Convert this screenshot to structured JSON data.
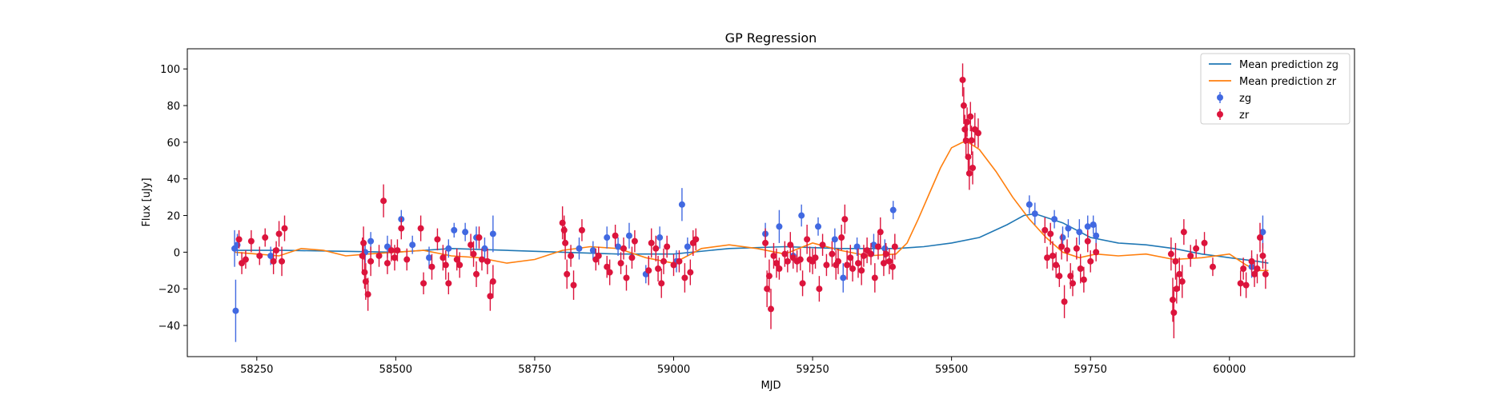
{
  "chart_data": {
    "type": "scatter",
    "title": "GP Regression",
    "xlabel": "MJD",
    "ylabel": "Flux [uJy]",
    "xlim": [
      58125,
      60225
    ],
    "ylim": [
      -57,
      111
    ],
    "xticks": [
      58250,
      58500,
      58750,
      59000,
      59250,
      59500,
      59750,
      60000
    ],
    "yticks": [
      -40,
      -20,
      0,
      20,
      40,
      60,
      80,
      100
    ],
    "grid": false,
    "legend_position": "top-right",
    "colors": {
      "mean_zg": "#1f77b4",
      "mean_zr": "#ff7f0e",
      "obs_zg": "#4169e1",
      "obs_zr": "#dc143c"
    },
    "legend": [
      {
        "label": "Mean prediction zg",
        "kind": "line",
        "color": "#1f77b4"
      },
      {
        "label": "Mean prediction zr",
        "kind": "line",
        "color": "#ff7f0e"
      },
      {
        "label": "zg",
        "kind": "errorbar",
        "color": "#4169e1"
      },
      {
        "label": "zr",
        "kind": "errorbar",
        "color": "#dc143c"
      }
    ],
    "series": [
      {
        "name": "Mean prediction zg",
        "kind": "line",
        "x": [
          58210,
          58300,
          58400,
          58500,
          58600,
          58700,
          58800,
          58900,
          59000,
          59100,
          59200,
          59300,
          59400,
          59450,
          59500,
          59550,
          59600,
          59630,
          59650,
          59700,
          59750,
          59800,
          59850,
          59900,
          59950,
          60000,
          60050,
          60070
        ],
        "y": [
          1,
          1,
          0.5,
          0,
          2,
          1,
          0,
          -1,
          -1,
          2,
          3,
          2,
          2,
          3,
          5,
          8,
          15,
          20,
          21,
          16,
          8,
          5,
          4,
          2,
          -1,
          -3,
          -5,
          -6
        ]
      },
      {
        "name": "Mean prediction zr",
        "kind": "line",
        "x": [
          58210,
          58250,
          58290,
          58330,
          58370,
          58410,
          58450,
          58500,
          58550,
          58600,
          58650,
          58700,
          58750,
          58800,
          58850,
          58900,
          58950,
          59000,
          59050,
          59100,
          59150,
          59200,
          59250,
          59300,
          59350,
          59400,
          59420,
          59440,
          59460,
          59480,
          59500,
          59520,
          59530,
          59550,
          59580,
          59610,
          59640,
          59670,
          59700,
          59730,
          59760,
          59800,
          59850,
          59900,
          59950,
          60000,
          60030,
          60050,
          60070
        ],
        "y": [
          0,
          -1,
          -2,
          2,
          1,
          -2,
          -1,
          0,
          1,
          -2,
          -3,
          -6,
          -4,
          1,
          3,
          2,
          -3,
          -6,
          2,
          4,
          2,
          -1,
          5,
          1,
          -2,
          -1,
          5,
          18,
          32,
          46,
          57,
          60,
          60,
          56,
          44,
          30,
          18,
          8,
          0,
          -3,
          -1,
          -2,
          -1,
          -4,
          -3,
          -1,
          -7,
          -10,
          -10
        ]
      },
      {
        "name": "zg",
        "kind": "errorbar",
        "points": [
          [
            58210,
            2,
            10
          ],
          [
            58212,
            -32,
            17
          ],
          [
            58215,
            4,
            6
          ],
          [
            58275,
            -2,
            5
          ],
          [
            58445,
            0,
            6
          ],
          [
            58455,
            6,
            5
          ],
          [
            58485,
            3,
            6
          ],
          [
            58510,
            18,
            5
          ],
          [
            58530,
            4,
            5
          ],
          [
            58560,
            -3,
            6
          ],
          [
            58595,
            2,
            5
          ],
          [
            58605,
            12,
            4
          ],
          [
            58625,
            11,
            5
          ],
          [
            58645,
            8,
            6
          ],
          [
            58660,
            2,
            6
          ],
          [
            58675,
            10,
            10
          ],
          [
            58830,
            2,
            6
          ],
          [
            58855,
            1,
            5
          ],
          [
            58880,
            8,
            6
          ],
          [
            58900,
            3,
            5
          ],
          [
            58920,
            9,
            7
          ],
          [
            58950,
            -12,
            5
          ],
          [
            58975,
            8,
            6
          ],
          [
            59005,
            -5,
            6
          ],
          [
            59015,
            26,
            9
          ],
          [
            59025,
            3,
            5
          ],
          [
            59165,
            10,
            6
          ],
          [
            59190,
            14,
            9
          ],
          [
            59215,
            -2,
            6
          ],
          [
            59230,
            20,
            6
          ],
          [
            59260,
            14,
            5
          ],
          [
            59290,
            7,
            6
          ],
          [
            59305,
            -14,
            8
          ],
          [
            59330,
            3,
            5
          ],
          [
            59360,
            4,
            6
          ],
          [
            59380,
            2,
            5
          ],
          [
            59395,
            23,
            5
          ],
          [
            59640,
            26,
            5
          ],
          [
            59650,
            21,
            6
          ],
          [
            59685,
            18,
            5
          ],
          [
            59700,
            8,
            6
          ],
          [
            59710,
            13,
            5
          ],
          [
            59730,
            11,
            7
          ],
          [
            59745,
            14,
            6
          ],
          [
            59755,
            15,
            5
          ],
          [
            59760,
            9,
            6
          ],
          [
            60040,
            -8,
            6
          ],
          [
            60060,
            11,
            9
          ]
        ]
      },
      {
        "name": "zr",
        "kind": "errorbar",
        "points": [
          [
            58218,
            7,
            5
          ],
          [
            58223,
            -6,
            6
          ],
          [
            58230,
            -4,
            5
          ],
          [
            58240,
            6,
            6
          ],
          [
            58255,
            -2,
            5
          ],
          [
            58265,
            8,
            5
          ],
          [
            58280,
            -5,
            7
          ],
          [
            58285,
            1,
            5
          ],
          [
            58290,
            10,
            7
          ],
          [
            58295,
            -5,
            8
          ],
          [
            58300,
            13,
            7
          ],
          [
            58440,
            -2,
            10
          ],
          [
            58442,
            5,
            9
          ],
          [
            58444,
            -11,
            9
          ],
          [
            58446,
            -16,
            10
          ],
          [
            58450,
            -23,
            9
          ],
          [
            58455,
            -5,
            8
          ],
          [
            58470,
            -2,
            6
          ],
          [
            58478,
            28,
            9
          ],
          [
            58485,
            -6,
            6
          ],
          [
            58492,
            1,
            6
          ],
          [
            58498,
            -3,
            7
          ],
          [
            58503,
            1,
            6
          ],
          [
            58510,
            13,
            6
          ],
          [
            58520,
            -4,
            6
          ],
          [
            58545,
            13,
            7
          ],
          [
            58550,
            -17,
            6
          ],
          [
            58565,
            -8,
            7
          ],
          [
            58575,
            7,
            6
          ],
          [
            58585,
            -3,
            7
          ],
          [
            58590,
            -7,
            8
          ],
          [
            58595,
            -17,
            6
          ],
          [
            58610,
            -4,
            6
          ],
          [
            58615,
            -7,
            7
          ],
          [
            58635,
            4,
            6
          ],
          [
            58640,
            -1,
            7
          ],
          [
            58645,
            -12,
            7
          ],
          [
            58650,
            8,
            6
          ],
          [
            58655,
            -4,
            6
          ],
          [
            58665,
            -5,
            7
          ],
          [
            58670,
            -24,
            8
          ],
          [
            58675,
            -16,
            9
          ],
          [
            58800,
            16,
            9
          ],
          [
            58803,
            12,
            8
          ],
          [
            58805,
            5,
            9
          ],
          [
            58808,
            -12,
            8
          ],
          [
            58815,
            -2,
            6
          ],
          [
            58820,
            -18,
            8
          ],
          [
            58835,
            12,
            6
          ],
          [
            58860,
            -4,
            6
          ],
          [
            58865,
            -2,
            5
          ],
          [
            58880,
            -8,
            6
          ],
          [
            58885,
            -11,
            7
          ],
          [
            58895,
            9,
            6
          ],
          [
            58905,
            -6,
            6
          ],
          [
            58910,
            2,
            6
          ],
          [
            58915,
            -14,
            7
          ],
          [
            58925,
            -3,
            6
          ],
          [
            58930,
            6,
            6
          ],
          [
            58955,
            -10,
            8
          ],
          [
            58960,
            5,
            8
          ],
          [
            58968,
            2,
            7
          ],
          [
            58972,
            -9,
            7
          ],
          [
            58978,
            -17,
            8
          ],
          [
            58982,
            -5,
            7
          ],
          [
            58988,
            3,
            6
          ],
          [
            59000,
            -7,
            6
          ],
          [
            59010,
            -5,
            6
          ],
          [
            59020,
            -14,
            8
          ],
          [
            59030,
            -11,
            7
          ],
          [
            59035,
            5,
            7
          ],
          [
            59040,
            7,
            6
          ],
          [
            59165,
            5,
            8
          ],
          [
            59168,
            -20,
            10
          ],
          [
            59172,
            -13,
            9
          ],
          [
            59175,
            -31,
            11
          ],
          [
            59180,
            -2,
            7
          ],
          [
            59185,
            -6,
            8
          ],
          [
            59190,
            -9,
            6
          ],
          [
            59200,
            -1,
            7
          ],
          [
            59205,
            -5,
            6
          ],
          [
            59210,
            4,
            7
          ],
          [
            59215,
            -3,
            6
          ],
          [
            59222,
            -5,
            6
          ],
          [
            59228,
            -4,
            6
          ],
          [
            59232,
            -17,
            7
          ],
          [
            59240,
            7,
            8
          ],
          [
            59245,
            -4,
            7
          ],
          [
            59250,
            -5,
            7
          ],
          [
            59255,
            -3,
            6
          ],
          [
            59262,
            -20,
            7
          ],
          [
            59268,
            4,
            6
          ],
          [
            59275,
            -7,
            6
          ],
          [
            59285,
            -1,
            7
          ],
          [
            59292,
            -7,
            8
          ],
          [
            59296,
            -5,
            7
          ],
          [
            59302,
            8,
            7
          ],
          [
            59308,
            18,
            8
          ],
          [
            59312,
            -7,
            8
          ],
          [
            59318,
            -3,
            7
          ],
          [
            59322,
            -9,
            7
          ],
          [
            59332,
            -6,
            8
          ],
          [
            59338,
            -10,
            8
          ],
          [
            59342,
            -2,
            6
          ],
          [
            59348,
            1,
            7
          ],
          [
            59355,
            -1,
            6
          ],
          [
            59362,
            -14,
            8
          ],
          [
            59368,
            3,
            7
          ],
          [
            59372,
            11,
            8
          ],
          [
            59378,
            -6,
            7
          ],
          [
            59382,
            -1,
            6
          ],
          [
            59388,
            -5,
            7
          ],
          [
            59394,
            -8,
            7
          ],
          [
            59398,
            3,
            7
          ],
          [
            59520,
            94,
            9
          ],
          [
            59522,
            80,
            10
          ],
          [
            59524,
            67,
            8
          ],
          [
            59526,
            61,
            9
          ],
          [
            59528,
            71,
            8
          ],
          [
            59530,
            52,
            8
          ],
          [
            59532,
            43,
            9
          ],
          [
            59534,
            74,
            8
          ],
          [
            59536,
            61,
            8
          ],
          [
            59538,
            46,
            9
          ],
          [
            59542,
            67,
            9
          ],
          [
            59548,
            65,
            8
          ],
          [
            59668,
            12,
            7
          ],
          [
            59672,
            -3,
            6
          ],
          [
            59678,
            10,
            6
          ],
          [
            59682,
            -2,
            8
          ],
          [
            59688,
            -7,
            7
          ],
          [
            59694,
            -13,
            6
          ],
          [
            59698,
            3,
            7
          ],
          [
            59703,
            -27,
            9
          ],
          [
            59708,
            1,
            6
          ],
          [
            59714,
            -13,
            7
          ],
          [
            59718,
            -17,
            7
          ],
          [
            59725,
            2,
            6
          ],
          [
            59732,
            -9,
            8
          ],
          [
            59738,
            -15,
            7
          ],
          [
            59745,
            6,
            6
          ],
          [
            59750,
            -5,
            6
          ],
          [
            59760,
            0,
            5
          ],
          [
            59895,
            -1,
            9
          ],
          [
            59898,
            -26,
            12
          ],
          [
            59900,
            -33,
            14
          ],
          [
            59903,
            -5,
            10
          ],
          [
            59905,
            -20,
            8
          ],
          [
            59910,
            -12,
            9
          ],
          [
            59915,
            -16,
            9
          ],
          [
            59918,
            11,
            7
          ],
          [
            59930,
            -2,
            6
          ],
          [
            59940,
            2,
            5
          ],
          [
            59955,
            5,
            6
          ],
          [
            59970,
            -8,
            5
          ],
          [
            60020,
            -17,
            7
          ],
          [
            60025,
            -9,
            6
          ],
          [
            60030,
            -18,
            7
          ],
          [
            60040,
            -5,
            6
          ],
          [
            60045,
            -12,
            7
          ],
          [
            60050,
            -9,
            8
          ],
          [
            60055,
            8,
            8
          ],
          [
            60060,
            -2,
            7
          ],
          [
            60065,
            -12,
            8
          ]
        ]
      }
    ]
  }
}
